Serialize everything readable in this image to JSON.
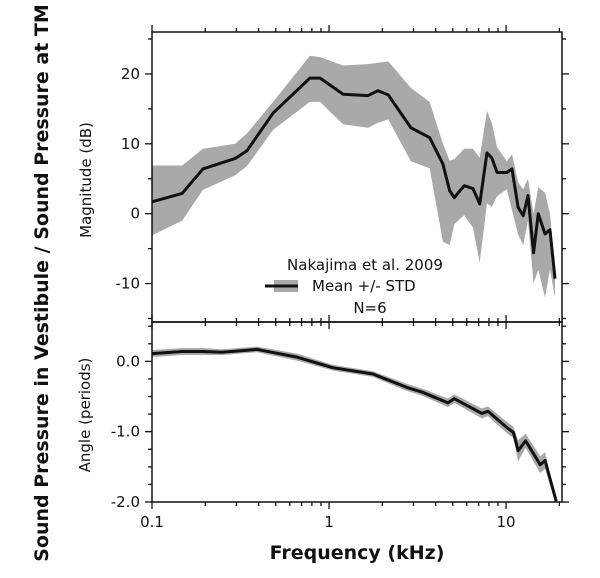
{
  "chart_data": [
    {
      "type": "area",
      "panel": "magnitude",
      "ylabel": "Magnitude (dB)",
      "xscale": "log",
      "xlim": [
        0.1,
        20.7
      ],
      "ylim": [
        -15.5,
        26
      ],
      "yticks": [
        20,
        10,
        0,
        -10
      ],
      "ytick_labels": [
        "20",
        "10",
        "0",
        "-10"
      ],
      "legend": {
        "title": "Nakajima et al. 2009",
        "label": "Mean +/- STD",
        "note": "N=6",
        "placement": "bottom-center"
      },
      "x": [
        0.1,
        0.148,
        0.194,
        0.295,
        0.344,
        0.483,
        0.78,
        0.89,
        1.2,
        1.66,
        1.89,
        2.16,
        2.9,
        3.7,
        4.4,
        4.8,
        5.1,
        5.8,
        6.5,
        7.1,
        7.8,
        8.3,
        8.9,
        10.1,
        10.8,
        11.7,
        12.5,
        13.3,
        14.3,
        15.2,
        16.6,
        17.7,
        18.9
      ],
      "series": [
        {
          "name": "Mean",
          "values": [
            1.7,
            2.9,
            6.4,
            7.9,
            9.0,
            14.4,
            19.4,
            19.4,
            17.1,
            16.9,
            17.6,
            17.0,
            12.3,
            10.9,
            7.1,
            3.3,
            2.3,
            4.0,
            3.6,
            1.4,
            8.7,
            8.0,
            5.9,
            5.9,
            6.4,
            0.9,
            -0.3,
            2.6,
            -5.6,
            0.0,
            -2.9,
            -2.3,
            -9.3
          ]
        },
        {
          "name": "Mean + STD",
          "values": [
            6.9,
            6.9,
            9.3,
            10.0,
            11.5,
            16.0,
            22.6,
            22.4,
            21.2,
            21.4,
            21.6,
            21.8,
            18.0,
            16.0,
            10.0,
            7.6,
            7.8,
            9.3,
            9.3,
            8.0,
            14.7,
            13.0,
            9.5,
            7.5,
            8.5,
            4.5,
            3.5,
            5.0,
            0.0,
            3.8,
            3.0,
            0.0,
            -8.0
          ]
        },
        {
          "name": "Mean - STD",
          "values": [
            -3.1,
            -1.0,
            3.4,
            5.5,
            6.8,
            12.0,
            16.0,
            16.0,
            12.8,
            12.3,
            13.0,
            13.5,
            7.5,
            6.5,
            -4.0,
            -4.5,
            -1.5,
            -0.2,
            -2.0,
            -7.0,
            1.5,
            1.0,
            2.5,
            3.5,
            0.5,
            -3.0,
            -4.5,
            -1.0,
            -10.0,
            -8.0,
            -12.0,
            -8.0,
            -12.0
          ]
        }
      ]
    },
    {
      "type": "area",
      "panel": "angle",
      "ylabel": "Angle (periods)",
      "xlabel": "Frequency (kHz)",
      "xscale": "log",
      "xlim": [
        0.1,
        20.7
      ],
      "ylim": [
        -2.0,
        0.56
      ],
      "yticks": [
        0.0,
        -1.0,
        -2.0
      ],
      "ytick_labels": [
        "0.0",
        "-1.0",
        "-2.0"
      ],
      "xticks": [
        0.1,
        1,
        10
      ],
      "xtick_labels": [
        "0.1",
        "1",
        "10"
      ],
      "x": [
        0.1,
        0.148,
        0.194,
        0.248,
        0.392,
        0.66,
        1.05,
        1.77,
        2.75,
        3.38,
        4.7,
        5.1,
        7.3,
        7.9,
        10.1,
        11,
        11.7,
        12.9,
        15.6,
        16.6,
        19.2
      ],
      "series": [
        {
          "name": "Mean",
          "values": [
            0.11,
            0.14,
            0.14,
            0.13,
            0.17,
            0.06,
            -0.09,
            -0.18,
            -0.37,
            -0.44,
            -0.59,
            -0.53,
            -0.74,
            -0.71,
            -0.94,
            -1.01,
            -1.27,
            -1.13,
            -1.47,
            -1.41,
            -1.99
          ]
        },
        {
          "name": "STD",
          "values": [
            0.05,
            0.05,
            0.05,
            0.04,
            0.04,
            0.05,
            0.04,
            0.04,
            0.05,
            0.05,
            0.06,
            0.06,
            0.07,
            0.07,
            0.08,
            0.08,
            0.15,
            0.1,
            0.12,
            0.12,
            0.03
          ]
        }
      ]
    }
  ],
  "figure": {
    "outer_ylabel": "Sound Pressure in Vestibule / Sound Pressure at TM",
    "band_color": "#a9a9a9",
    "line_color": "#111111"
  }
}
